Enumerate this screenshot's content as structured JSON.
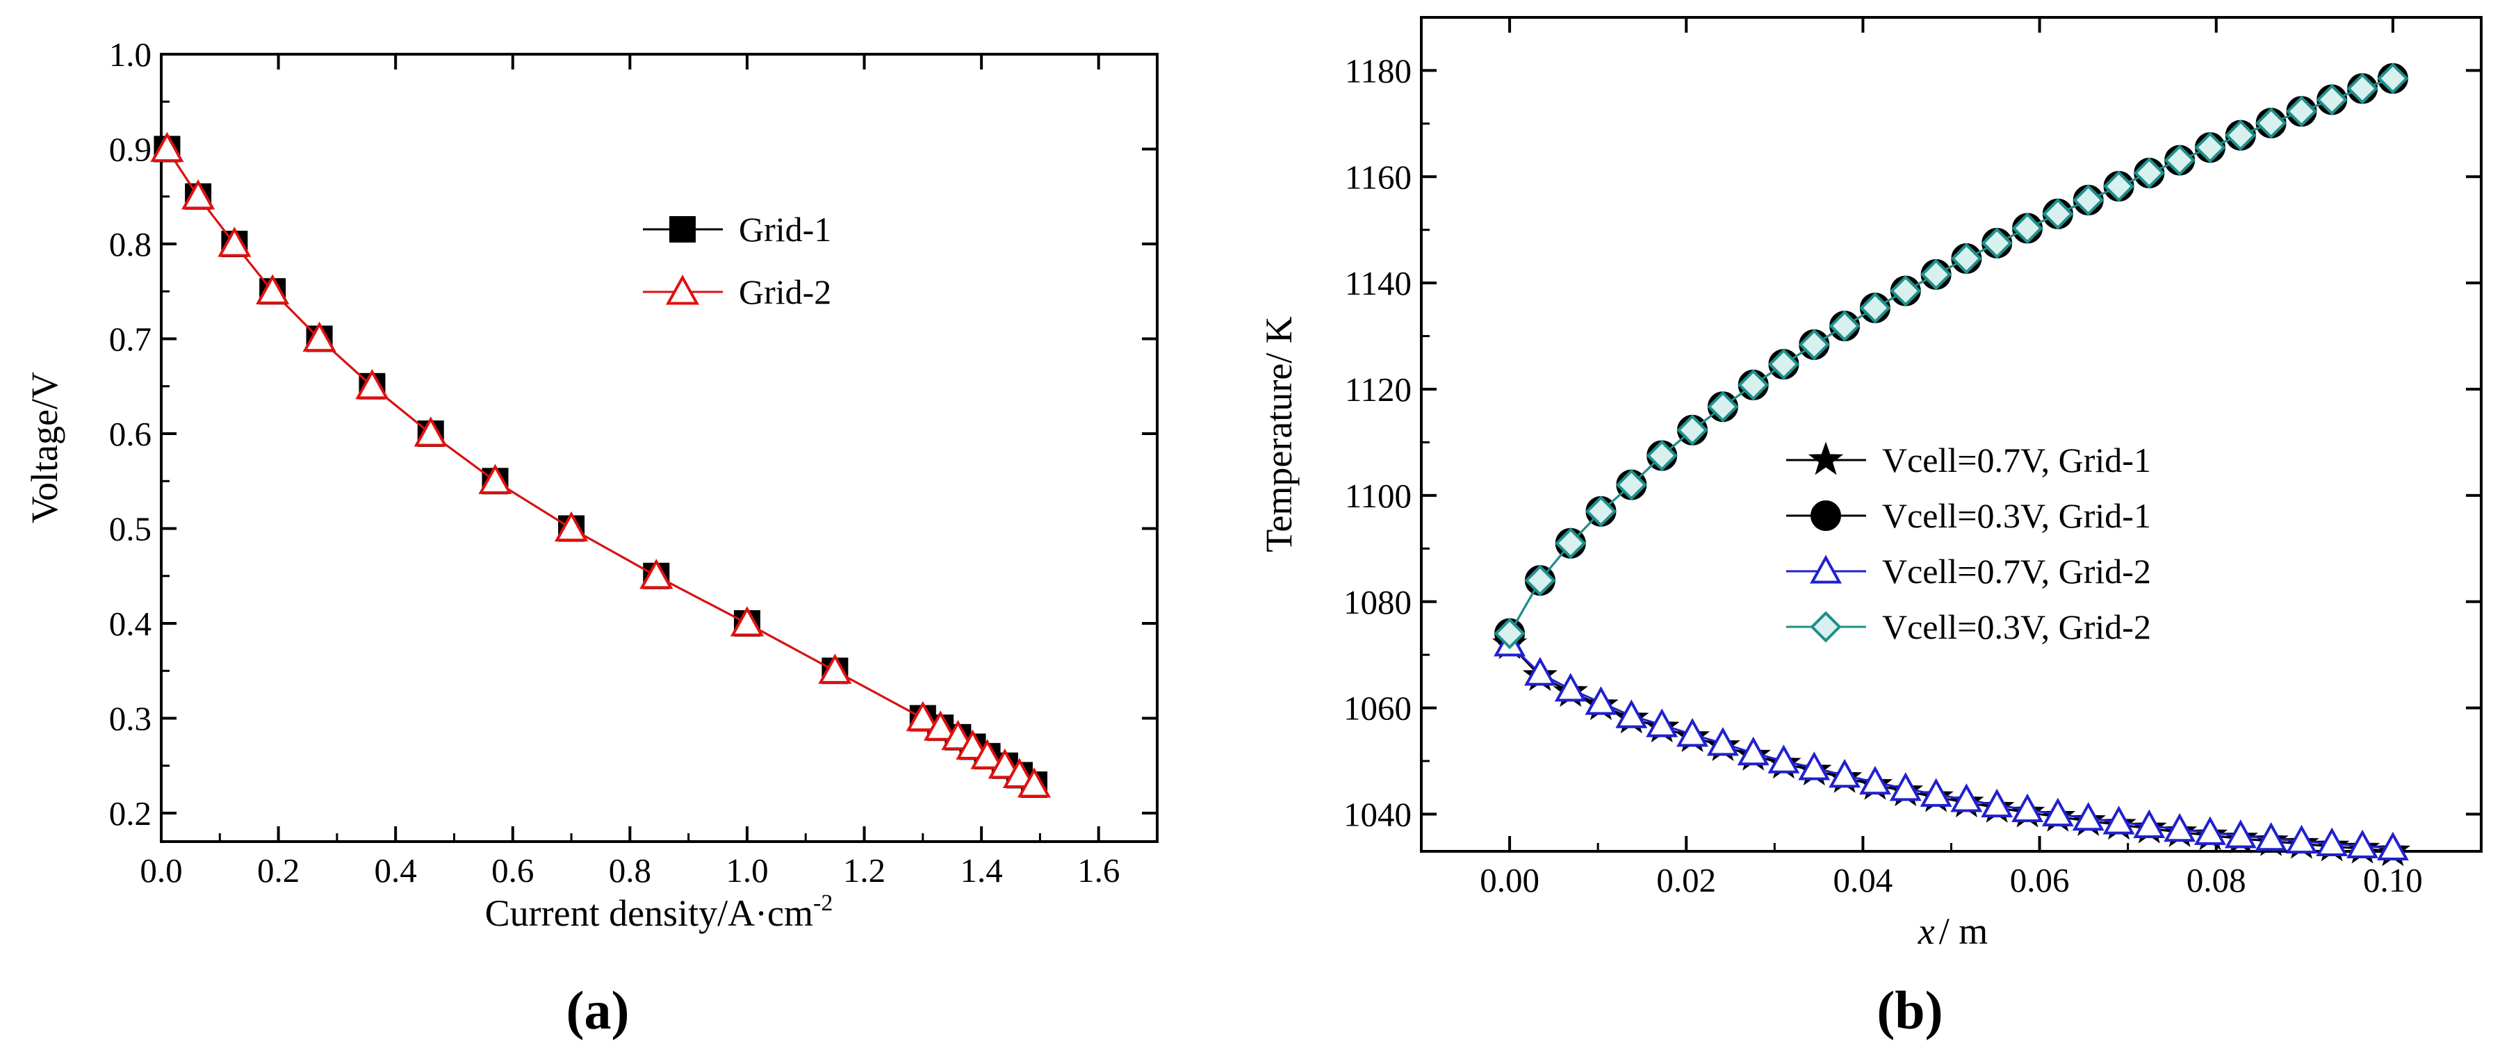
{
  "chart_data": [
    {
      "panel": "a",
      "type": "line",
      "xlabel_main": "Current density/A·cm",
      "xlabel_sup": "-2",
      "ylabel": "Voltage/V",
      "xlim": [
        0.0,
        1.7
      ],
      "ylim": [
        0.17,
        1.0
      ],
      "xticks": [
        "0.0",
        "0.2",
        "0.4",
        "0.6",
        "0.8",
        "1.0",
        "1.2",
        "1.4",
        "1.6"
      ],
      "yticks": [
        "0.2",
        "0.3",
        "0.4",
        "0.5",
        "0.6",
        "0.7",
        "0.8",
        "0.9",
        "1.0"
      ],
      "legend_position": "upper-middle",
      "series": [
        {
          "name": "Grid-1",
          "marker": "filled-square",
          "line_color": "#000000",
          "x": [
            0.01,
            0.063,
            0.125,
            0.19,
            0.27,
            0.36,
            0.46,
            0.57,
            0.7,
            0.845,
            1.0,
            1.15,
            1.3,
            1.33,
            1.36,
            1.385,
            1.41,
            1.44,
            1.465,
            1.49
          ],
          "y": [
            0.9,
            0.85,
            0.8,
            0.75,
            0.7,
            0.65,
            0.6,
            0.55,
            0.5,
            0.45,
            0.4,
            0.35,
            0.3,
            0.29,
            0.28,
            0.27,
            0.26,
            0.25,
            0.24,
            0.23
          ]
        },
        {
          "name": "Grid-2",
          "marker": "open-triangle",
          "line_color": "#e01010",
          "x": [
            0.01,
            0.063,
            0.125,
            0.19,
            0.27,
            0.36,
            0.46,
            0.57,
            0.7,
            0.845,
            1.0,
            1.15,
            1.3,
            1.33,
            1.36,
            1.385,
            1.41,
            1.44,
            1.465,
            1.49
          ],
          "y": [
            0.9,
            0.85,
            0.8,
            0.75,
            0.7,
            0.65,
            0.6,
            0.55,
            0.5,
            0.45,
            0.4,
            0.35,
            0.3,
            0.29,
            0.28,
            0.27,
            0.26,
            0.25,
            0.24,
            0.23
          ]
        }
      ]
    },
    {
      "panel": "b",
      "type": "line",
      "xlabel_italic": "x",
      "xlabel_rest": "/ m",
      "ylabel": "Temperature/ K",
      "xlim": [
        -0.01,
        0.11
      ],
      "ylim": [
        1033,
        1190
      ],
      "xticks": [
        "0.00",
        "0.02",
        "0.04",
        "0.06",
        "0.08",
        "0.10"
      ],
      "yticks": [
        "1040",
        "1060",
        "1080",
        "1100",
        "1120",
        "1140",
        "1160",
        "1180"
      ],
      "legend_position": "center-right",
      "series": [
        {
          "name": "Vcell=0.7V, Grid-1",
          "marker": "filled-star",
          "line_color": "#000000",
          "x": [
            0.0,
            0.00345,
            0.0069,
            0.01034,
            0.01379,
            0.01724,
            0.02069,
            0.02414,
            0.02759,
            0.03103,
            0.03448,
            0.03793,
            0.04138,
            0.04483,
            0.04828,
            0.05172,
            0.05517,
            0.05862,
            0.06207,
            0.06552,
            0.06897,
            0.07241,
            0.07586,
            0.07931,
            0.08276,
            0.08621,
            0.08966,
            0.0931,
            0.09655,
            0.1
          ],
          "y": [
            1072,
            1066,
            1063,
            1060.5,
            1058,
            1056.3,
            1054.5,
            1052.8,
            1051,
            1049.5,
            1048.2,
            1046.8,
            1045.5,
            1044.3,
            1043.2,
            1042.2,
            1041.2,
            1040.3,
            1039.5,
            1038.7,
            1038,
            1037.3,
            1036.6,
            1036,
            1035.4,
            1034.9,
            1034.4,
            1033.9,
            1033.5,
            1033
          ]
        },
        {
          "name": "Vcell=0.3V, Grid-1",
          "marker": "filled-circle",
          "line_color": "#000000",
          "x": [
            0.0,
            0.00345,
            0.0069,
            0.01034,
            0.01379,
            0.01724,
            0.02069,
            0.02414,
            0.02759,
            0.03103,
            0.03448,
            0.03793,
            0.04138,
            0.04483,
            0.04828,
            0.05172,
            0.05517,
            0.05862,
            0.06207,
            0.06552,
            0.06897,
            0.07241,
            0.07586,
            0.07931,
            0.08276,
            0.08621,
            0.08966,
            0.0931,
            0.09655,
            0.1
          ],
          "y": [
            1074,
            1084,
            1091,
            1097,
            1102,
            1107.5,
            1112.3,
            1116.7,
            1120.8,
            1124.7,
            1128.4,
            1131.9,
            1135.3,
            1138.5,
            1141.6,
            1144.6,
            1147.5,
            1150.3,
            1153,
            1155.6,
            1158.2,
            1160.7,
            1163.1,
            1165.5,
            1167.8,
            1170.1,
            1172.3,
            1174.5,
            1176.6,
            1178.5
          ]
        },
        {
          "name": "Vcell=0.7V, Grid-2",
          "marker": "open-triangle",
          "line_color": "#2020d0",
          "x": [
            0.0,
            0.00345,
            0.0069,
            0.01034,
            0.01379,
            0.01724,
            0.02069,
            0.02414,
            0.02759,
            0.03103,
            0.03448,
            0.03793,
            0.04138,
            0.04483,
            0.04828,
            0.05172,
            0.05517,
            0.05862,
            0.06207,
            0.06552,
            0.06897,
            0.07241,
            0.07586,
            0.07931,
            0.08276,
            0.08621,
            0.08966,
            0.0931,
            0.09655,
            0.1
          ],
          "y": [
            1072,
            1066.5,
            1063.5,
            1061,
            1058.5,
            1056.8,
            1055,
            1053.3,
            1051.5,
            1050,
            1048.7,
            1047.3,
            1046,
            1044.8,
            1043.7,
            1042.7,
            1041.7,
            1040.8,
            1040,
            1039.2,
            1038.5,
            1037.8,
            1037.1,
            1036.5,
            1035.9,
            1035.4,
            1034.9,
            1034.4,
            1034,
            1033.6
          ]
        },
        {
          "name": "Vcell=0.3V, Grid-2",
          "marker": "open-diamond",
          "line_color": "#1f8f8a",
          "x": [
            0.0,
            0.00345,
            0.0069,
            0.01034,
            0.01379,
            0.01724,
            0.02069,
            0.02414,
            0.02759,
            0.03103,
            0.03448,
            0.03793,
            0.04138,
            0.04483,
            0.04828,
            0.05172,
            0.05517,
            0.05862,
            0.06207,
            0.06552,
            0.06897,
            0.07241,
            0.07586,
            0.07931,
            0.08276,
            0.08621,
            0.08966,
            0.0931,
            0.09655,
            0.1
          ],
          "y": [
            1074,
            1084,
            1091,
            1097,
            1102,
            1107.5,
            1112.3,
            1116.7,
            1120.8,
            1124.7,
            1128.4,
            1131.9,
            1135.3,
            1138.5,
            1141.6,
            1144.6,
            1147.5,
            1150.3,
            1153,
            1155.6,
            1158.2,
            1160.7,
            1163.1,
            1165.5,
            1167.8,
            1170.1,
            1172.3,
            1174.5,
            1176.6,
            1178.5
          ]
        }
      ]
    }
  ],
  "panel_labels": [
    "(a)",
    "(b)"
  ]
}
